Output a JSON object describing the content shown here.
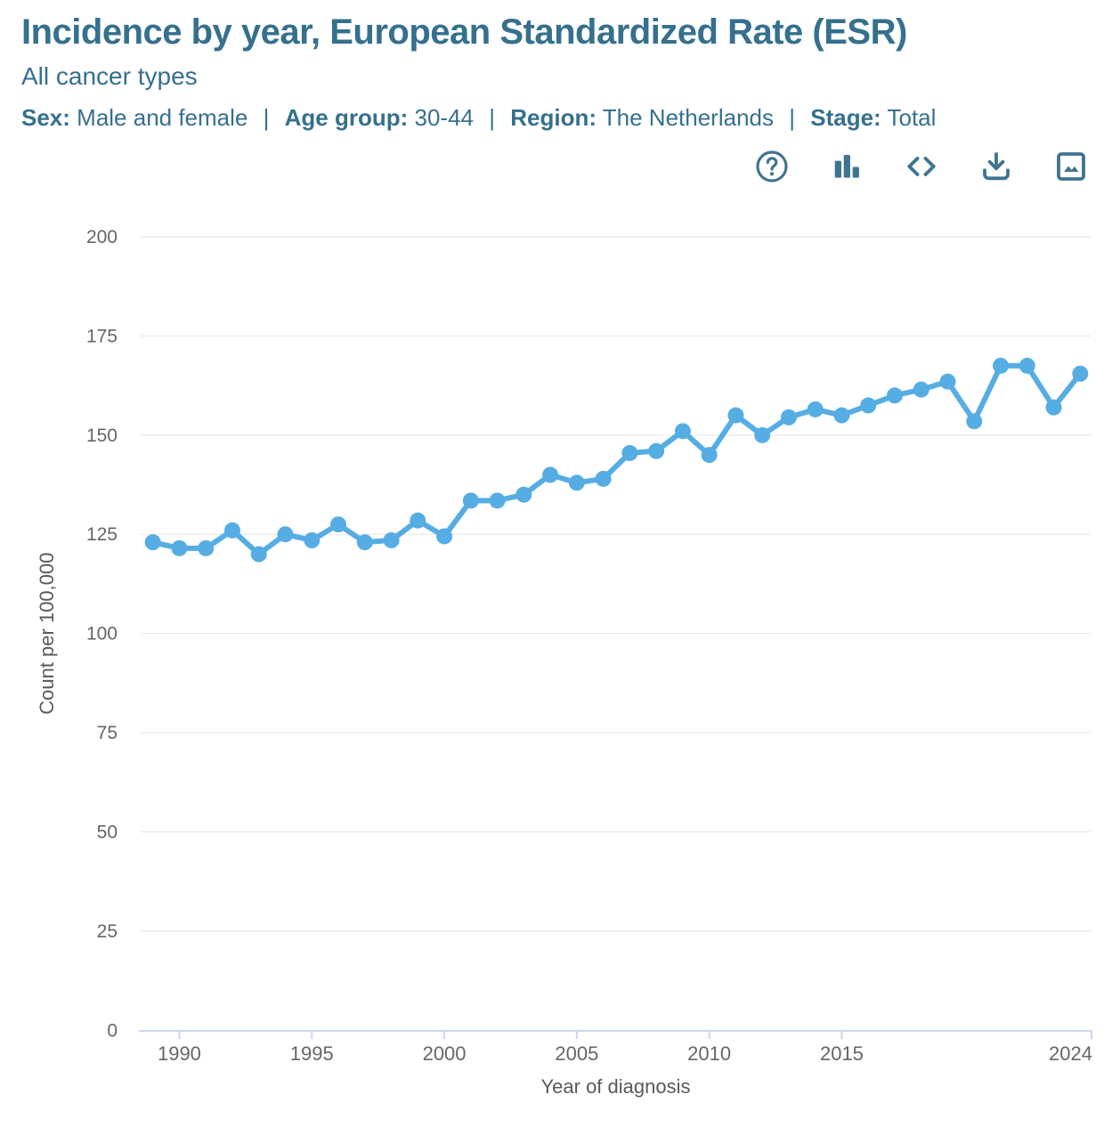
{
  "header": {
    "title": "Incidence by year, European Standardized Rate (ESR)",
    "subtitle": "All cancer types",
    "separator": "|",
    "filters": [
      {
        "label": "Sex:",
        "value": "Male and female"
      },
      {
        "label": "Age group:",
        "value": "30-44"
      },
      {
        "label": "Region:",
        "value": "The Netherlands"
      },
      {
        "label": "Stage:",
        "value": "Total"
      }
    ]
  },
  "toolbar": {
    "buttons": [
      {
        "name": "help",
        "icon": "question-circle-icon"
      },
      {
        "name": "chart-type",
        "icon": "bar-chart-icon"
      },
      {
        "name": "embed-code",
        "icon": "code-icon"
      },
      {
        "name": "download",
        "icon": "download-icon"
      },
      {
        "name": "image-export",
        "icon": "image-icon"
      }
    ]
  },
  "colors": {
    "accent": "#35708e",
    "icon": "#3f7490",
    "line": "#56ade4",
    "grid": "#e6e6e6",
    "axis": "#ccd6eb",
    "tick_label": "#666666",
    "axis_title": "#595959"
  },
  "chart_data": {
    "type": "line",
    "title": "Incidence by year, European Standardized Rate (ESR)",
    "subtitle": "All cancer types",
    "x": [
      1989,
      1990,
      1991,
      1992,
      1993,
      1994,
      1995,
      1996,
      1997,
      1998,
      1999,
      2000,
      2001,
      2002,
      2003,
      2004,
      2005,
      2006,
      2007,
      2008,
      2009,
      2010,
      2011,
      2012,
      2013,
      2014,
      2015,
      2016,
      2017,
      2018,
      2019,
      2020,
      2021,
      2022,
      2023,
      2024
    ],
    "values": [
      123,
      121.5,
      121.5,
      126,
      120,
      125,
      123.5,
      127.5,
      123,
      123.5,
      128.5,
      124.5,
      133.5,
      133.5,
      135,
      140,
      138,
      139,
      145.5,
      146,
      151,
      145,
      155,
      150,
      154.5,
      156.5,
      155,
      157.5,
      160,
      161.5,
      163.5,
      153.5,
      167.5,
      167.5,
      157,
      165.5
    ],
    "xlabel": "Year of diagnosis",
    "ylabel": "Count per 100,000",
    "ylim": [
      0,
      200
    ],
    "yticks": [
      0,
      25,
      50,
      75,
      100,
      125,
      150,
      175,
      200
    ],
    "xticks": [
      1990,
      1995,
      2000,
      2005,
      2010,
      2015,
      2024
    ],
    "grid": true,
    "legend": false,
    "line_color": "#56ade4"
  }
}
